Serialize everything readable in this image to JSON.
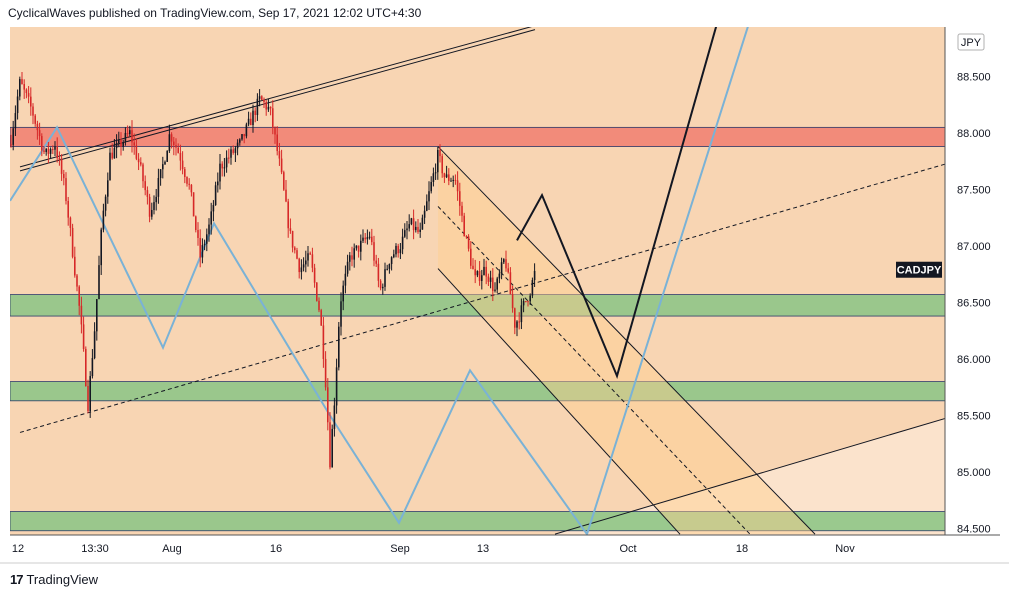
{
  "header": {
    "text": "CyclicalWaves published on TradingView.com, Sep 17, 2021 12:02 UTC+4:30"
  },
  "brand": {
    "logo": "17",
    "name": "TradingView"
  },
  "colors": {
    "background": "#f8d5b3",
    "resistance_zone": "#f28b7a",
    "support_zone": "#8fc587",
    "candle_down": "#d62828",
    "candle_up": "#131722",
    "zigzag": "#7ab2d6",
    "projection": "#131722"
  },
  "chart_data": {
    "type": "candlestick",
    "symbol": "CADJPY",
    "currency": "JPY",
    "y_ticks": [
      "88.500",
      "88.000",
      "87.500",
      "87.000",
      "86.500",
      "86.000",
      "85.500",
      "85.000",
      "84.500"
    ],
    "ylim": [
      84.5,
      88.9
    ],
    "x_ticks": [
      "12",
      "13:30",
      "Aug",
      "16",
      "Sep",
      "13",
      "Oct",
      "18",
      "Nov"
    ],
    "last_price_label": "CADJPY",
    "last_price": 86.79,
    "resistance_zone": [
      87.88,
      88.05
    ],
    "support_zones": [
      [
        86.38,
        86.57
      ],
      [
        85.63,
        85.8
      ],
      [
        84.48,
        84.65
      ]
    ],
    "close_path": [
      [
        0,
        87.9
      ],
      [
        10,
        88.45
      ],
      [
        22,
        88.2
      ],
      [
        35,
        87.8
      ],
      [
        45,
        87.9
      ],
      [
        55,
        87.5
      ],
      [
        62,
        87.0
      ],
      [
        70,
        86.4
      ],
      [
        78,
        85.6
      ],
      [
        85,
        86.3
      ],
      [
        92,
        87.2
      ],
      [
        100,
        87.8
      ],
      [
        110,
        87.9
      ],
      [
        120,
        88.0
      ],
      [
        130,
        87.7
      ],
      [
        140,
        87.3
      ],
      [
        150,
        87.6
      ],
      [
        160,
        88.0
      ],
      [
        170,
        87.8
      ],
      [
        180,
        87.5
      ],
      [
        190,
        86.9
      ],
      [
        200,
        87.2
      ],
      [
        210,
        87.7
      ],
      [
        220,
        87.8
      ],
      [
        230,
        87.9
      ],
      [
        240,
        88.1
      ],
      [
        250,
        88.3
      ],
      [
        260,
        88.2
      ],
      [
        270,
        87.7
      ],
      [
        280,
        87.1
      ],
      [
        290,
        86.8
      ],
      [
        300,
        86.9
      ],
      [
        310,
        86.4
      ],
      [
        315,
        85.9
      ],
      [
        320,
        85.1
      ],
      [
        325,
        85.7
      ],
      [
        330,
        86.5
      ],
      [
        340,
        86.9
      ],
      [
        350,
        87.0
      ],
      [
        360,
        87.1
      ],
      [
        370,
        86.6
      ],
      [
        380,
        86.9
      ],
      [
        390,
        87.0
      ],
      [
        400,
        87.2
      ],
      [
        410,
        87.1
      ],
      [
        420,
        87.5
      ],
      [
        428,
        87.8
      ],
      [
        435,
        87.6
      ],
      [
        445,
        87.6
      ],
      [
        455,
        87.1
      ],
      [
        465,
        86.7
      ],
      [
        475,
        86.8
      ],
      [
        485,
        86.6
      ],
      [
        495,
        86.9
      ],
      [
        505,
        86.3
      ],
      [
        510,
        86.4
      ],
      [
        515,
        86.5
      ],
      [
        520,
        86.6
      ],
      [
        526,
        86.8
      ]
    ],
    "zigzag_points": [
      [
        0,
        87.4
      ],
      [
        47,
        88.05
      ],
      [
        153,
        86.1
      ],
      [
        204,
        87.2
      ],
      [
        320,
        85.5
      ],
      [
        389,
        84.55
      ],
      [
        460,
        85.9
      ],
      [
        577,
        84.45
      ],
      [
        740,
        89.0
      ]
    ],
    "projection_points": [
      [
        507,
        87.05
      ],
      [
        532,
        87.45
      ],
      [
        607,
        85.85
      ],
      [
        708,
        89.0
      ]
    ],
    "channel_top": [
      [
        428,
        87.88
      ],
      [
        805,
        84.45
      ]
    ],
    "channel_mid": [
      [
        428,
        87.35
      ],
      [
        740,
        84.45
      ]
    ],
    "channel_bottom": [
      [
        428,
        86.8
      ],
      [
        670,
        84.45
      ]
    ],
    "dashed_trend": [
      [
        10,
        85.35
      ],
      [
        945,
        87.75
      ]
    ],
    "lower_trend": [
      [
        545,
        84.45
      ],
      [
        945,
        85.5
      ]
    ],
    "upper_double_trend": [
      [
        10,
        87.7
      ],
      [
        525,
        88.95
      ]
    ]
  }
}
